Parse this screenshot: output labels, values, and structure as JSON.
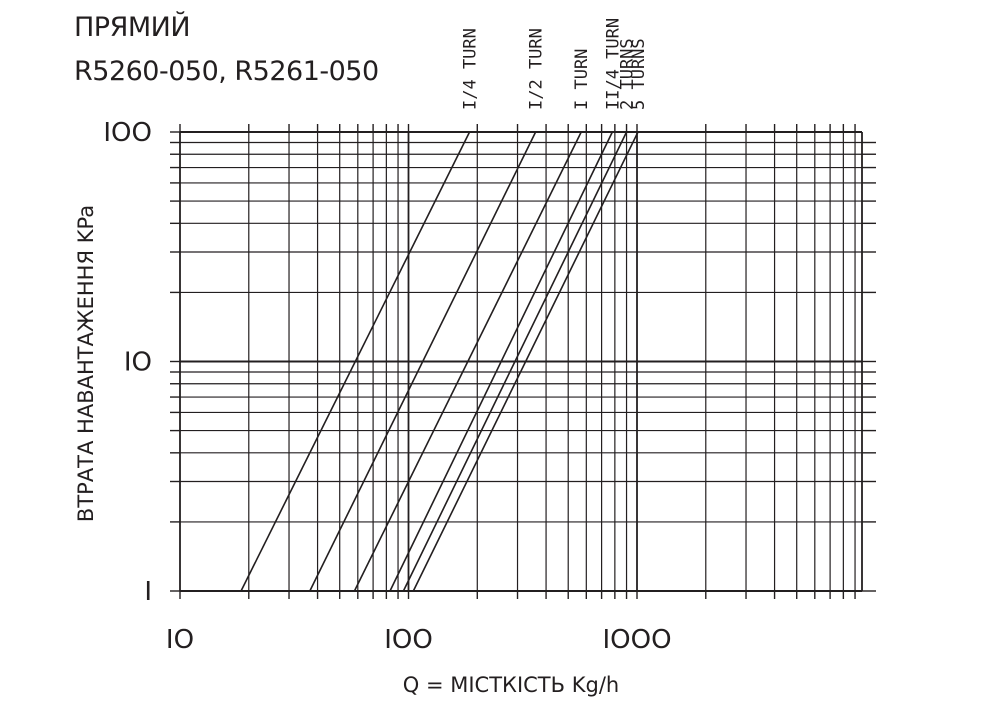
{
  "header": {
    "title": "ПРЯМИЙ",
    "subtitle": "R5260-050, R5261-050"
  },
  "chart_data": {
    "type": "line",
    "xscale": "log",
    "yscale": "log",
    "xlim": [
      10,
      1000
    ],
    "ylim": [
      1,
      100
    ],
    "xlabel": "Q = МІСТКІСТЬ Kg/h",
    "ylabel": "ВТРАТА НАВАНТАЖЕННЯ KPa",
    "xticks": [
      {
        "value": 10,
        "label": "IO"
      },
      {
        "value": 100,
        "label": "IOO"
      },
      {
        "value": 1000,
        "label": "IOOO"
      }
    ],
    "yticks": [
      {
        "value": 1,
        "label": "I"
      },
      {
        "value": 10,
        "label": "IO"
      },
      {
        "value": 100,
        "label": "IOO"
      }
    ],
    "grid": true,
    "series": [
      {
        "name": "I/4 TURN",
        "x": [
          18.5,
          185
        ],
        "y": [
          1,
          100
        ]
      },
      {
        "name": "I/2 TURN",
        "x": [
          37,
          360
        ],
        "y": [
          1,
          100
        ]
      },
      {
        "name": "I TURN",
        "x": [
          58,
          570
        ],
        "y": [
          1,
          100
        ]
      },
      {
        "name": "II/4 TURN",
        "x": [
          83,
          780
        ],
        "y": [
          1,
          100
        ]
      },
      {
        "name": "2 TURNS",
        "x": [
          95,
          900
        ],
        "y": [
          1,
          100
        ]
      },
      {
        "name": "5 TURNS",
        "x": [
          105,
          1010
        ],
        "y": [
          1,
          100
        ]
      }
    ]
  }
}
